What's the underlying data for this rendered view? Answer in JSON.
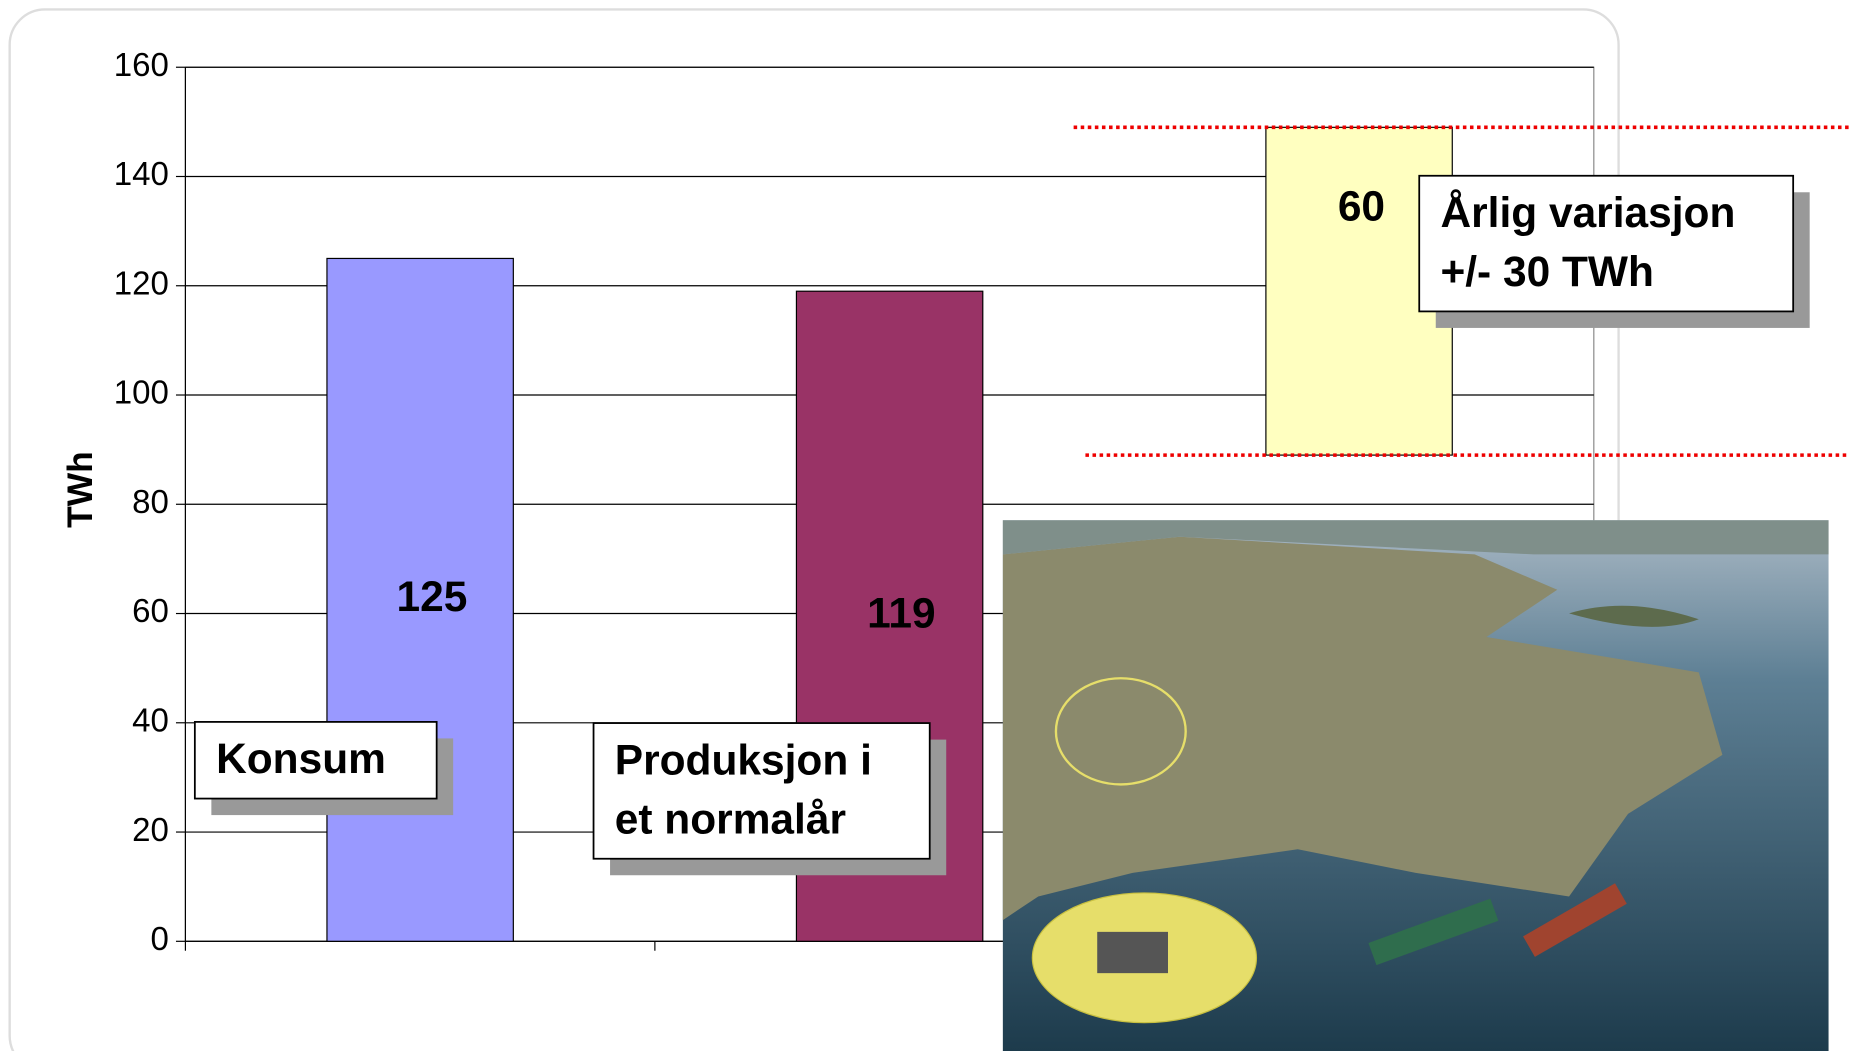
{
  "chart_data": {
    "type": "bar",
    "y_label": "TWh",
    "categories": [
      null,
      null,
      null
    ],
    "values": [
      125,
      119,
      60
    ],
    "bases": [
      0,
      0,
      89
    ],
    "colors": [
      "#9999ff",
      "#993366",
      "#ffffc0"
    ],
    "ylim": [
      0,
      160
    ],
    "yticks": [
      0,
      20,
      40,
      60,
      80,
      100,
      120,
      140,
      160
    ],
    "grid": true,
    "annotations": [
      {
        "lines": [
          "Konsum"
        ]
      },
      {
        "lines": [
          "Produksjon i",
          "et normalår"
        ]
      },
      {
        "lines": [
          "Årlig variasjon",
          "+/- 30 TWh"
        ]
      }
    ]
  }
}
